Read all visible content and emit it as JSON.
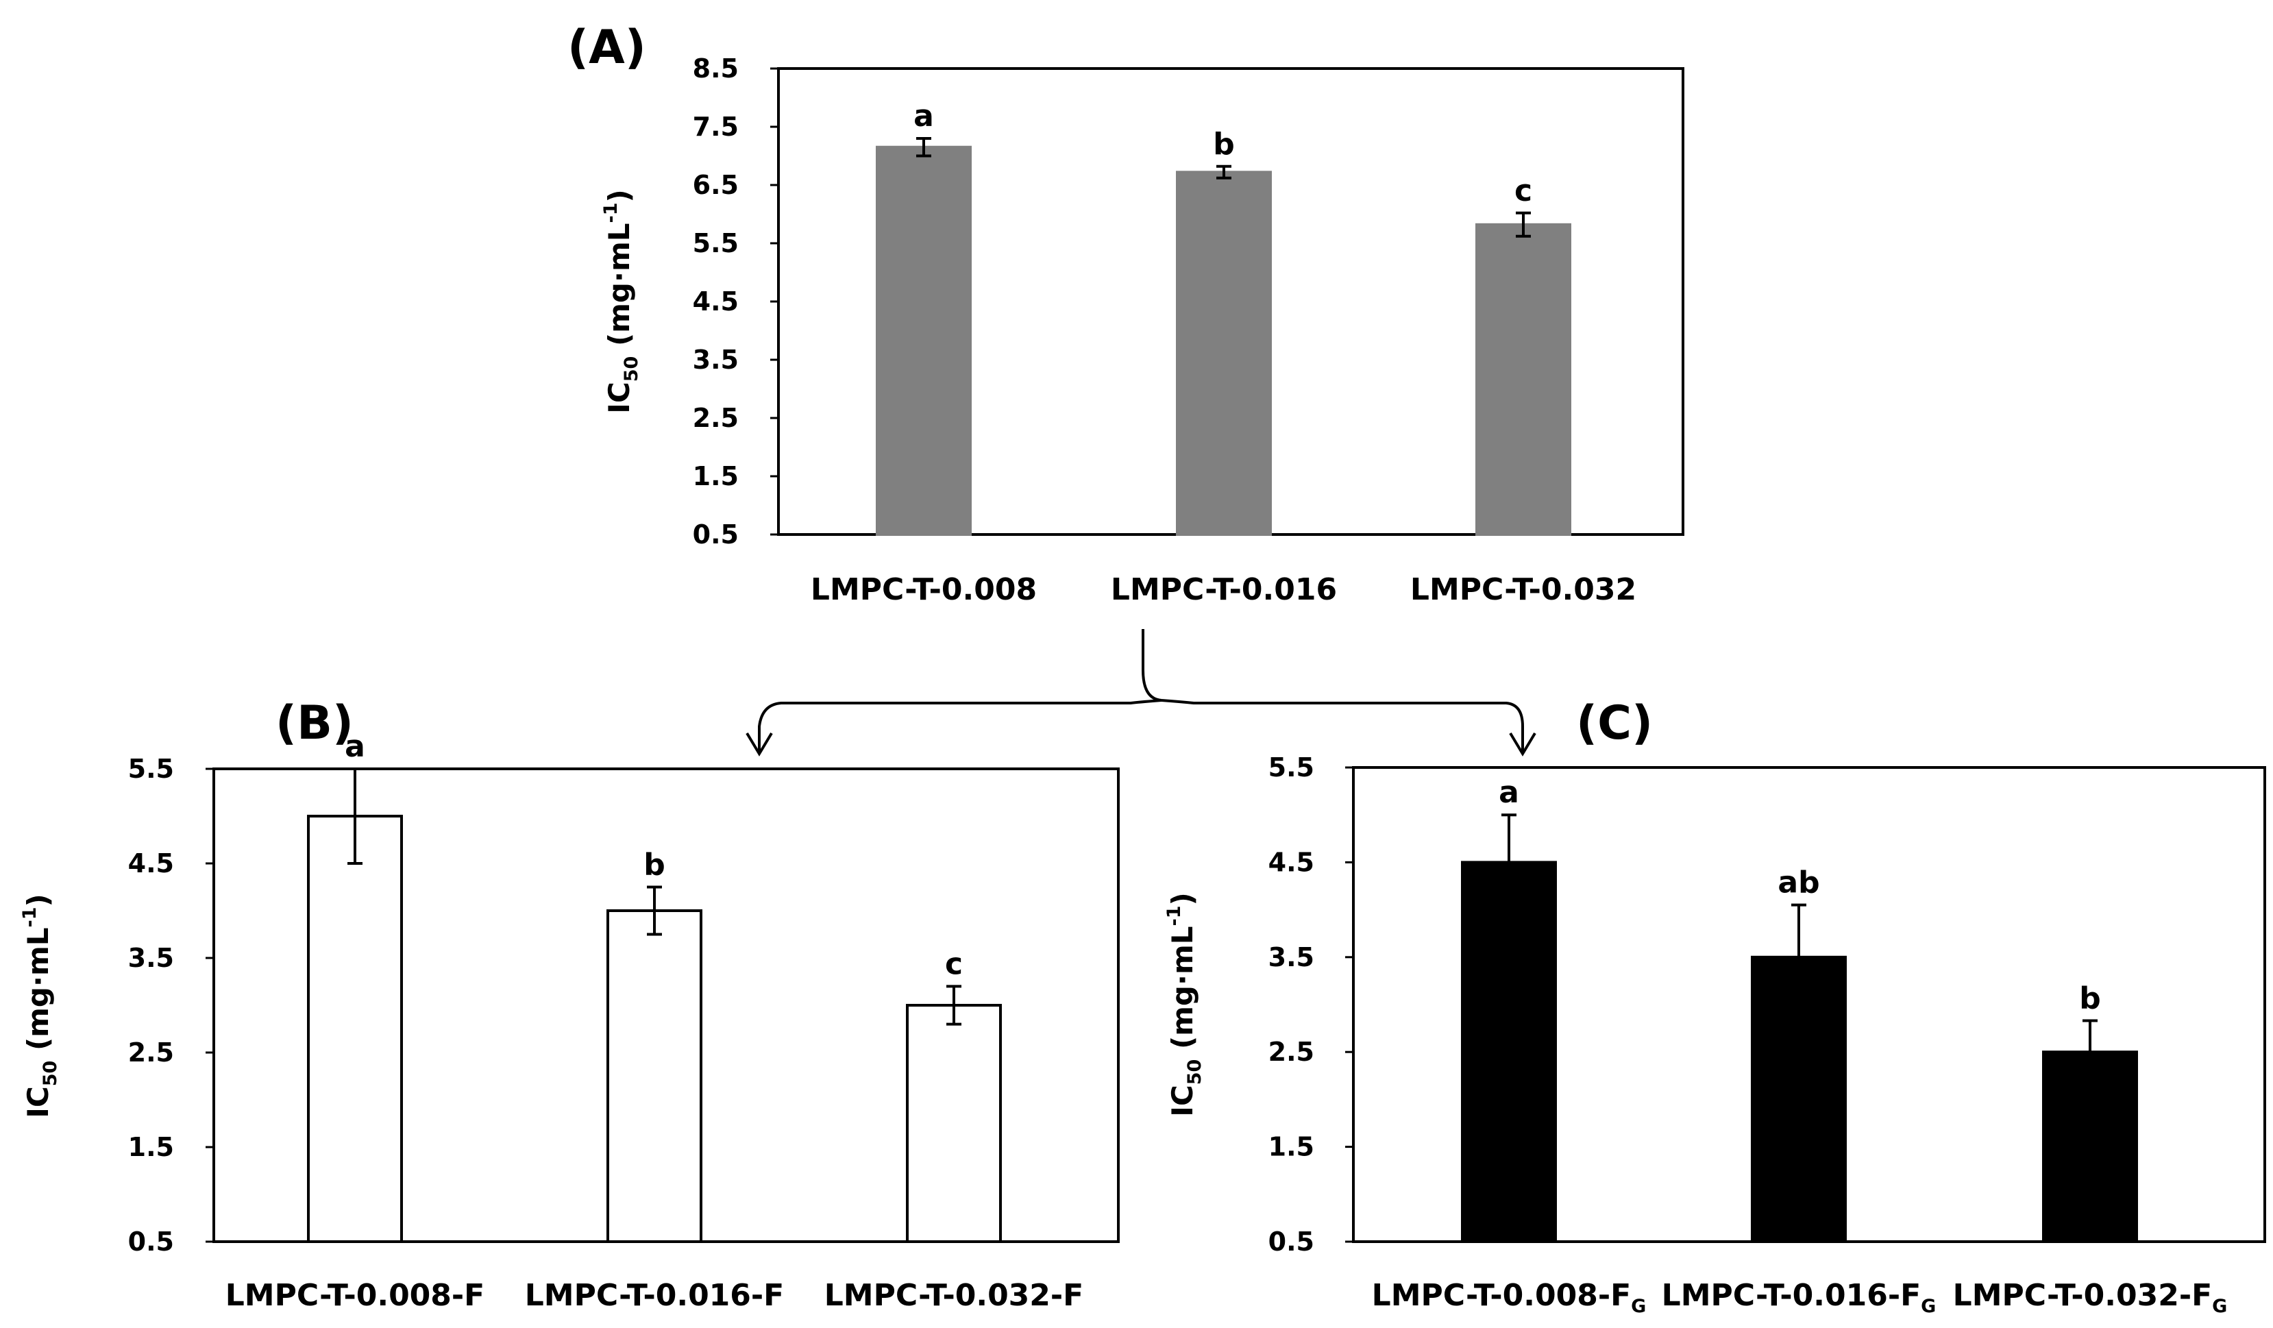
{
  "chart_data": [
    {
      "id": "A",
      "panel_label": "(A)",
      "type": "bar",
      "categories": [
        "LMPC-T-0.008",
        "LMPC-T-0.016",
        "LMPC-T-0.032"
      ],
      "values": [
        7.15,
        6.72,
        5.82
      ],
      "errors": [
        0.15,
        0.1,
        0.2
      ],
      "significance": [
        "a",
        "b",
        "c"
      ],
      "ylabel": {
        "main": "IC",
        "sub": "50",
        "unit": " (mg·mL",
        "sup": "-1",
        "close": ")"
      },
      "yticks": [
        "0.5",
        "1.5",
        "2.5",
        "3.5",
        "4.5",
        "5.5",
        "6.5",
        "7.5",
        "8.5"
      ],
      "ylim": [
        0.5,
        8.5
      ],
      "bar_color": "#808080",
      "bar_stroke": "#808080"
    },
    {
      "id": "B",
      "panel_label": "(B)",
      "type": "bar",
      "categories": [
        "LMPC-T-0.008-F",
        "LMPC-T-0.016-F",
        "LMPC-T-0.032-F"
      ],
      "values": [
        5.0,
        4.0,
        3.0
      ],
      "errors": [
        0.5,
        0.25,
        0.2
      ],
      "significance": [
        "a",
        "b",
        "c"
      ],
      "ylabel": {
        "main": "IC",
        "sub": "50",
        "unit": " (mg·mL",
        "sup": "-1",
        "close": ")"
      },
      "yticks": [
        "0.5",
        "1.5",
        "2.5",
        "3.5",
        "4.5",
        "5.5"
      ],
      "ylim": [
        0.5,
        5.5
      ],
      "bar_color": "#ffffff",
      "bar_stroke": "#000000"
    },
    {
      "id": "C",
      "panel_label": "(C)",
      "type": "bar",
      "categories": [
        {
          "main": "LMPC-T-0.008-F",
          "sub": "G"
        },
        {
          "main": "LMPC-T-0.016-F",
          "sub": "G"
        },
        {
          "main": "LMPC-T-0.032-F",
          "sub": "G"
        }
      ],
      "values": [
        4.5,
        3.5,
        2.5
      ],
      "errors": [
        0.5,
        0.55,
        0.33
      ],
      "error_style": "upper",
      "significance": [
        "a",
        "ab",
        "b"
      ],
      "ylabel": {
        "main": "IC",
        "sub": "50",
        "unit": " (mg·mL",
        "sup": "-1",
        "close": ")"
      },
      "yticks": [
        "0.5",
        "1.5",
        "2.5",
        "3.5",
        "4.5",
        "5.5"
      ],
      "ylim": [
        0.5,
        5.5
      ],
      "bar_color": "#000000",
      "bar_stroke": "#000000"
    }
  ]
}
